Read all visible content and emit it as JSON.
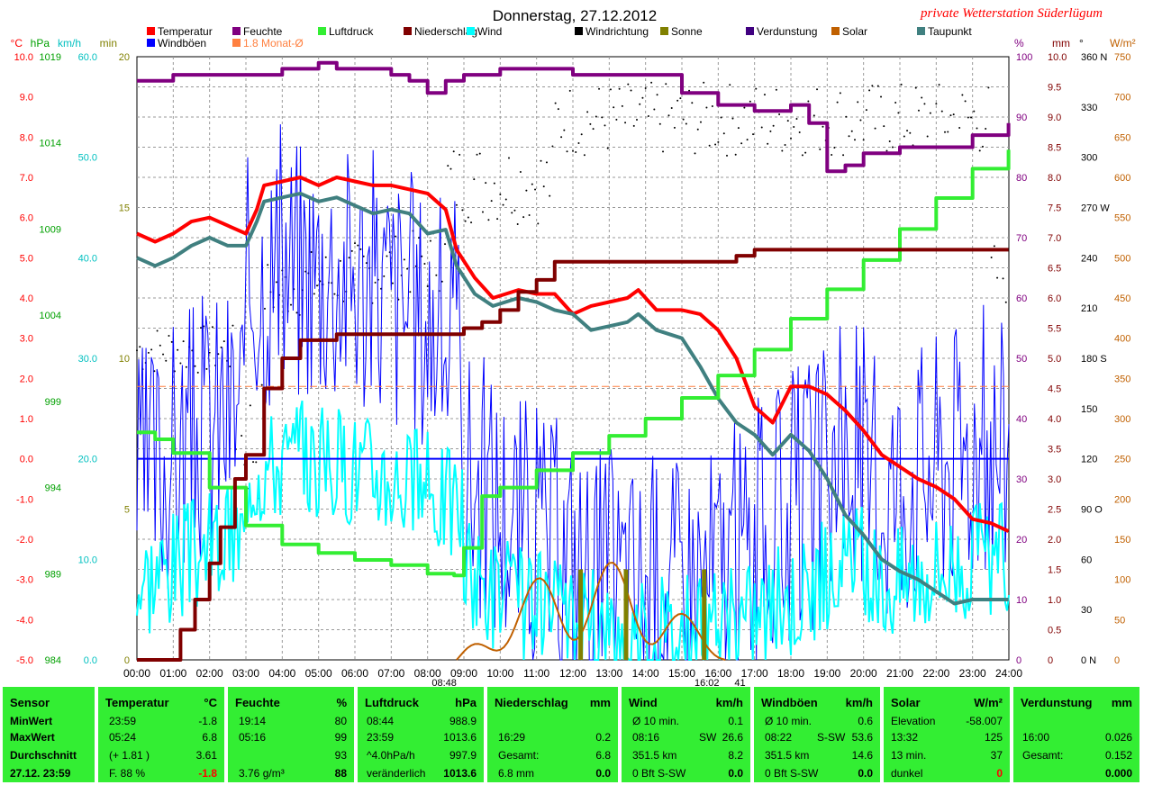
{
  "header": {
    "title": "Donnerstag, 27.12.2012",
    "station": "private Wetterstation Süderlügum"
  },
  "legend": [
    {
      "label": "Temperatur",
      "color": "#ff0000"
    },
    {
      "label": "Feuchte",
      "color": "#800080"
    },
    {
      "label": "Luftdruck",
      "color": "#33ee33"
    },
    {
      "label": "Niederschlag",
      "color": "#800000"
    },
    {
      "label": "Wind",
      "color": "#00ffff"
    },
    {
      "label": "Windrichtung",
      "color": "#000000"
    },
    {
      "label": "Sonne",
      "color": "#808000"
    },
    {
      "label": "Verdunstung",
      "color": "#400080"
    },
    {
      "label": "Solar",
      "color": "#c06000"
    },
    {
      "label": "Taupunkt",
      "color": "#408080"
    },
    {
      "label": "Windböen",
      "color": "#0000ff"
    },
    {
      "label": "1.8 Monat-Ø",
      "color": "#ff8040"
    }
  ],
  "axes": {
    "temp": {
      "unit": "°C",
      "color": "#ff0000",
      "ticks": [
        "10.0",
        "9.0",
        "8.0",
        "7.0",
        "6.0",
        "5.0",
        "4.0",
        "3.0",
        "2.0",
        "1.0",
        "0.0",
        "-1.0",
        "-2.0",
        "-3.0",
        "-4.0",
        "-5.0"
      ]
    },
    "hpa": {
      "unit": "hPa",
      "color": "#00a000",
      "ticks": [
        "1019",
        "1014",
        "1009",
        "1004",
        "999",
        "994",
        "989",
        "984"
      ]
    },
    "kmh": {
      "unit": "km/h",
      "color": "#00c0c0",
      "ticks": [
        "60.0",
        "50.0",
        "40.0",
        "30.0",
        "20.0",
        "10.0",
        "0.0"
      ]
    },
    "min": {
      "unit": "min",
      "color": "#808000",
      "ticks": [
        "20",
        "15",
        "10",
        "5",
        "0"
      ]
    },
    "pct": {
      "unit": "%",
      "color": "#800080",
      "ticks": [
        "100",
        "90",
        "80",
        "70",
        "60",
        "50",
        "40",
        "30",
        "20",
        "10",
        "0"
      ]
    },
    "mm": {
      "unit": "mm",
      "color": "#800000",
      "ticks": [
        "10.0",
        "9.5",
        "9.0",
        "8.5",
        "8.0",
        "7.5",
        "7.0",
        "6.5",
        "6.0",
        "5.5",
        "5.0",
        "4.5",
        "4.0",
        "3.5",
        "3.0",
        "2.5",
        "2.0",
        "1.5",
        "1.0",
        "0.5",
        "0"
      ]
    },
    "deg": {
      "unit": "°",
      "color": "#000000",
      "ticks": [
        "360 N",
        "330",
        "300",
        "270 W",
        "240",
        "210",
        "180 S",
        "150",
        "120",
        "90 O",
        "60",
        "30",
        "0 N"
      ]
    },
    "wm2": {
      "unit": "W/m²",
      "color": "#c06000",
      "ticks": [
        "750",
        "700",
        "650",
        "600",
        "550",
        "500",
        "450",
        "400",
        "350",
        "300",
        "250",
        "200",
        "150",
        "100",
        "50",
        "0"
      ]
    },
    "time": [
      "00:00",
      "01:00",
      "02:00",
      "03:00",
      "04:00",
      "05:00",
      "06:00",
      "07:00",
      "08:00",
      "09:00",
      "10:00",
      "11:00",
      "12:00",
      "13:00",
      "14:00",
      "15:00",
      "16:00",
      "17:00",
      "18:00",
      "19:00",
      "20:00",
      "21:00",
      "22:00",
      "23:00",
      "24:00"
    ],
    "time_marks": [
      "08:48",
      "16:02",
      "41"
    ]
  },
  "chart_data": {
    "type": "line",
    "x_unit": "hours",
    "series": [
      {
        "name": "Temperatur",
        "unit": "°C",
        "color": "#ff0000",
        "points": [
          [
            0,
            5.6
          ],
          [
            0.5,
            5.4
          ],
          [
            1,
            5.6
          ],
          [
            1.5,
            5.9
          ],
          [
            2,
            6.0
          ],
          [
            2.5,
            5.8
          ],
          [
            3,
            5.6
          ],
          [
            3.3,
            6.2
          ],
          [
            3.5,
            6.8
          ],
          [
            4,
            6.9
          ],
          [
            4.5,
            7.0
          ],
          [
            5,
            6.8
          ],
          [
            5.5,
            7.0
          ],
          [
            6,
            6.9
          ],
          [
            6.5,
            6.8
          ],
          [
            7,
            6.8
          ],
          [
            7.5,
            6.7
          ],
          [
            8,
            6.6
          ],
          [
            8.5,
            6.2
          ],
          [
            8.8,
            5.2
          ],
          [
            9.3,
            4.5
          ],
          [
            9.8,
            4.0
          ],
          [
            10.5,
            4.2
          ],
          [
            11,
            4.1
          ],
          [
            11.5,
            4.1
          ],
          [
            12,
            3.6
          ],
          [
            12.5,
            3.8
          ],
          [
            13,
            3.9
          ],
          [
            13.5,
            4.0
          ],
          [
            13.8,
            4.2
          ],
          [
            14.3,
            3.7
          ],
          [
            15,
            3.7
          ],
          [
            15.5,
            3.6
          ],
          [
            16,
            3.2
          ],
          [
            16.5,
            2.5
          ],
          [
            17,
            1.3
          ],
          [
            17.5,
            0.9
          ],
          [
            18,
            1.8
          ],
          [
            18.5,
            1.8
          ],
          [
            19,
            1.6
          ],
          [
            19.5,
            1.2
          ],
          [
            20,
            0.7
          ],
          [
            20.5,
            0.1
          ],
          [
            21,
            -0.2
          ],
          [
            21.5,
            -0.5
          ],
          [
            22,
            -0.7
          ],
          [
            22.5,
            -1.0
          ],
          [
            23,
            -1.5
          ],
          [
            23.5,
            -1.6
          ],
          [
            23.99,
            -1.8
          ]
        ]
      },
      {
        "name": "Taupunkt",
        "unit": "°C",
        "color": "#408080",
        "points": [
          [
            0,
            5.0
          ],
          [
            0.5,
            4.8
          ],
          [
            1,
            5.0
          ],
          [
            1.5,
            5.3
          ],
          [
            2,
            5.5
          ],
          [
            2.5,
            5.3
          ],
          [
            3,
            5.3
          ],
          [
            3.3,
            5.9
          ],
          [
            3.5,
            6.4
          ],
          [
            4,
            6.5
          ],
          [
            4.5,
            6.6
          ],
          [
            5,
            6.4
          ],
          [
            5.5,
            6.5
          ],
          [
            6,
            6.3
          ],
          [
            6.5,
            6.1
          ],
          [
            7,
            6.2
          ],
          [
            7.5,
            6.1
          ],
          [
            8,
            5.6
          ],
          [
            8.5,
            5.7
          ],
          [
            8.8,
            4.8
          ],
          [
            9.3,
            4.1
          ],
          [
            9.8,
            3.8
          ],
          [
            10.5,
            4.0
          ],
          [
            11,
            3.9
          ],
          [
            11.5,
            3.7
          ],
          [
            12,
            3.6
          ],
          [
            12.5,
            3.2
          ],
          [
            13,
            3.3
          ],
          [
            13.5,
            3.4
          ],
          [
            13.8,
            3.6
          ],
          [
            14.3,
            3.2
          ],
          [
            15,
            3.0
          ],
          [
            15.5,
            2.3
          ],
          [
            16,
            1.5
          ],
          [
            16.5,
            0.9
          ],
          [
            17,
            0.6
          ],
          [
            17.5,
            0.1
          ],
          [
            18,
            0.6
          ],
          [
            18.5,
            0.2
          ],
          [
            19,
            -0.5
          ],
          [
            19.5,
            -1.4
          ],
          [
            20,
            -1.9
          ],
          [
            20.5,
            -2.5
          ],
          [
            21,
            -2.8
          ],
          [
            21.5,
            -3.0
          ],
          [
            22,
            -3.3
          ],
          [
            22.5,
            -3.6
          ],
          [
            23,
            -3.5
          ],
          [
            23.5,
            -3.5
          ],
          [
            23.99,
            -3.5
          ]
        ]
      },
      {
        "name": "Feuchte",
        "unit": "%",
        "color": "#800080",
        "points": [
          [
            0,
            96
          ],
          [
            1,
            97
          ],
          [
            2,
            97
          ],
          [
            3,
            97
          ],
          [
            4,
            98
          ],
          [
            5,
            99
          ],
          [
            5.5,
            98
          ],
          [
            6,
            98
          ],
          [
            7,
            97
          ],
          [
            7.5,
            96
          ],
          [
            8,
            94
          ],
          [
            8.5,
            96
          ],
          [
            9,
            97
          ],
          [
            10,
            98
          ],
          [
            11,
            98
          ],
          [
            12,
            97
          ],
          [
            13,
            97
          ],
          [
            14,
            97
          ],
          [
            15,
            94
          ],
          [
            16,
            92
          ],
          [
            17,
            91
          ],
          [
            18,
            92
          ],
          [
            18.5,
            89
          ],
          [
            19,
            81
          ],
          [
            19.5,
            82
          ],
          [
            20,
            84
          ],
          [
            21,
            85
          ],
          [
            22,
            85
          ],
          [
            23,
            87
          ],
          [
            23.99,
            89
          ]
        ]
      },
      {
        "name": "Luftdruck",
        "unit": "hPa",
        "color": "#33ee33",
        "points": [
          [
            0,
            997.2
          ],
          [
            0.5,
            996.8
          ],
          [
            1,
            996.0
          ],
          [
            2,
            994.0
          ],
          [
            3,
            991.8
          ],
          [
            4,
            990.7
          ],
          [
            5,
            990.2
          ],
          [
            6,
            989.8
          ],
          [
            7,
            989.5
          ],
          [
            8,
            989.0
          ],
          [
            8.73,
            988.9
          ],
          [
            9,
            990.5
          ],
          [
            9.5,
            993.5
          ],
          [
            10,
            994.0
          ],
          [
            11,
            995.0
          ],
          [
            12,
            996.0
          ],
          [
            13,
            997.0
          ],
          [
            14,
            998.0
          ],
          [
            15,
            999.2
          ],
          [
            16,
            1000.5
          ],
          [
            17,
            1002.0
          ],
          [
            18,
            1003.8
          ],
          [
            19,
            1005.5
          ],
          [
            20,
            1007.2
          ],
          [
            21,
            1009.0
          ],
          [
            22,
            1010.8
          ],
          [
            23,
            1012.5
          ],
          [
            23.99,
            1013.6
          ]
        ]
      },
      {
        "name": "Niederschlag",
        "unit": "mm",
        "color": "#800000",
        "points": [
          [
            0,
            0
          ],
          [
            1,
            0
          ],
          [
            1.2,
            0.5
          ],
          [
            1.6,
            1.0
          ],
          [
            2,
            1.6
          ],
          [
            2.3,
            2.2
          ],
          [
            2.7,
            3.0
          ],
          [
            3,
            3.4
          ],
          [
            3.5,
            4.5
          ],
          [
            4,
            5.0
          ],
          [
            4.5,
            5.3
          ],
          [
            5,
            5.3
          ],
          [
            5.5,
            5.4
          ],
          [
            6,
            5.4
          ],
          [
            7,
            5.4
          ],
          [
            8,
            5.4
          ],
          [
            9,
            5.5
          ],
          [
            9.5,
            5.6
          ],
          [
            10,
            5.8
          ],
          [
            10.5,
            6.1
          ],
          [
            11,
            6.3
          ],
          [
            11.5,
            6.6
          ],
          [
            12,
            6.6
          ],
          [
            13,
            6.6
          ],
          [
            14,
            6.6
          ],
          [
            15,
            6.6
          ],
          [
            16,
            6.6
          ],
          [
            16.5,
            6.7
          ],
          [
            17,
            6.8
          ],
          [
            18,
            6.8
          ],
          [
            20,
            6.8
          ],
          [
            22,
            6.8
          ],
          [
            23.99,
            6.8
          ]
        ]
      }
    ],
    "monthly_average_temp": 1.8,
    "zero_line_temp": 0.0
  },
  "stats": {
    "col_sensor": {
      "header": "Sensor",
      "rows": [
        "MinWert",
        "MaxWert",
        "Durchschnitt",
        "27.12. 23:59"
      ]
    },
    "col_temp": {
      "header": "Temperatur",
      "unit": "°C",
      "rows": [
        [
          "23:59",
          "-1.8"
        ],
        [
          "05:24",
          "6.8"
        ],
        [
          "(+ 1.81 )",
          "3.61"
        ],
        [
          "F. 88 %",
          "-1.8"
        ]
      ]
    },
    "col_hum": {
      "header": "Feuchte",
      "unit": "%",
      "rows": [
        [
          "19:14",
          "80"
        ],
        [
          "05:16",
          "99"
        ],
        [
          "",
          "93"
        ],
        [
          "3.76 g/m³",
          "88"
        ]
      ]
    },
    "col_press": {
      "header": "Luftdruck",
      "unit": "hPa",
      "rows": [
        [
          "08:44",
          "988.9"
        ],
        [
          "23:59",
          "1013.6"
        ],
        [
          "^4.0hPa/h",
          "997.9"
        ],
        [
          "veränderlich",
          "1013.6"
        ]
      ]
    },
    "col_rain": {
      "header": "Niederschlag",
      "unit": "mm",
      "rows": [
        [
          "",
          ""
        ],
        [
          "16:29",
          "0.2"
        ],
        [
          "Gesamt:",
          "6.8"
        ],
        [
          "6.8 mm",
          "0.0"
        ]
      ]
    },
    "col_wind": {
      "header": "Wind",
      "unit": "km/h",
      "rows": [
        [
          "Ø 10 min.",
          "",
          "0.1"
        ],
        [
          "08:16",
          "SW",
          "26.6"
        ],
        [
          "351.5 km",
          "",
          "8.2"
        ],
        [
          "0 Bft S-SW",
          "",
          "0.0"
        ]
      ]
    },
    "col_gust": {
      "header": "Windböen",
      "unit": "km/h",
      "rows": [
        [
          "Ø 10 min.",
          "",
          "0.6"
        ],
        [
          "08:22",
          "S-SW",
          "53.6"
        ],
        [
          "351.5 km",
          "",
          "14.6"
        ],
        [
          "0 Bft S-SW",
          "",
          "0.0"
        ]
      ]
    },
    "col_solar": {
      "header": "Solar",
      "unit": "W/m²",
      "rows": [
        [
          "Elevation",
          "-58.007"
        ],
        [
          "13:32",
          "125"
        ],
        [
          "13 min.",
          "37"
        ],
        [
          "dunkel",
          "0"
        ]
      ]
    },
    "col_evap": {
      "header": "Verdunstung",
      "unit": "mm",
      "rows": [
        [
          "",
          ""
        ],
        [
          "16:00",
          "0.026"
        ],
        [
          "Gesamt:",
          "0.152"
        ],
        [
          "",
          "0.000"
        ]
      ]
    }
  }
}
